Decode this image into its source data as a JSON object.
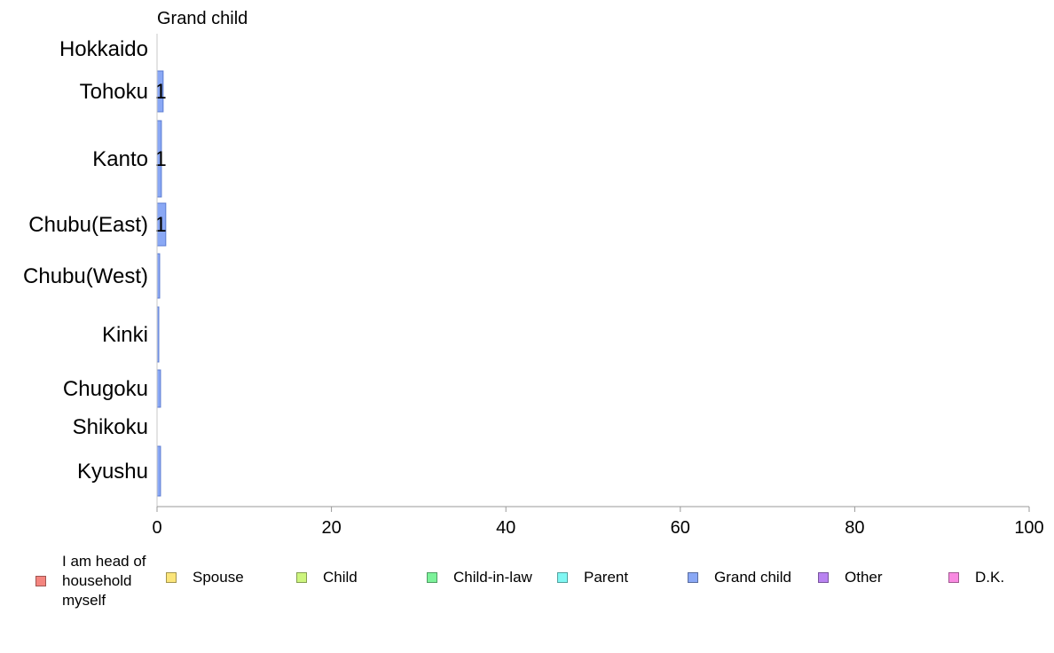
{
  "chart_data": {
    "type": "bar",
    "orientation": "horizontal",
    "title": "Grand child",
    "categories": [
      "Hokkaido",
      "Tohoku",
      "Kanto",
      "Chubu(East)",
      "Chubu(West)",
      "Kinki",
      "Chugoku",
      "Shikoku",
      "Kyushu"
    ],
    "values": [
      0,
      0.7,
      0.5,
      1.0,
      0.3,
      0.2,
      0.4,
      0,
      0.4
    ],
    "data_labels": [
      "",
      "1",
      "1",
      "1",
      "",
      "",
      "",
      "",
      ""
    ],
    "xlim": [
      0,
      100
    ],
    "xticks": [
      "0",
      "20",
      "40",
      "60",
      "80",
      "100"
    ],
    "bar_color": "#8aa8f5",
    "bar_edge": "#5b7bd1",
    "legend_position": "bottom",
    "legend": [
      {
        "label": "I am head of\nhousehold\nmyself",
        "color": "#f4857f"
      },
      {
        "label": "Spouse",
        "color": "#fbe57a"
      },
      {
        "label": "Child",
        "color": "#cdf57e"
      },
      {
        "label": "Child-in-law",
        "color": "#7cf29a"
      },
      {
        "label": "Parent",
        "color": "#80f7f3"
      },
      {
        "label": "Grand child",
        "color": "#8aa8f5"
      },
      {
        "label": "Other",
        "color": "#b983f1"
      },
      {
        "label": "D.K.",
        "color": "#f98ae1"
      }
    ]
  }
}
